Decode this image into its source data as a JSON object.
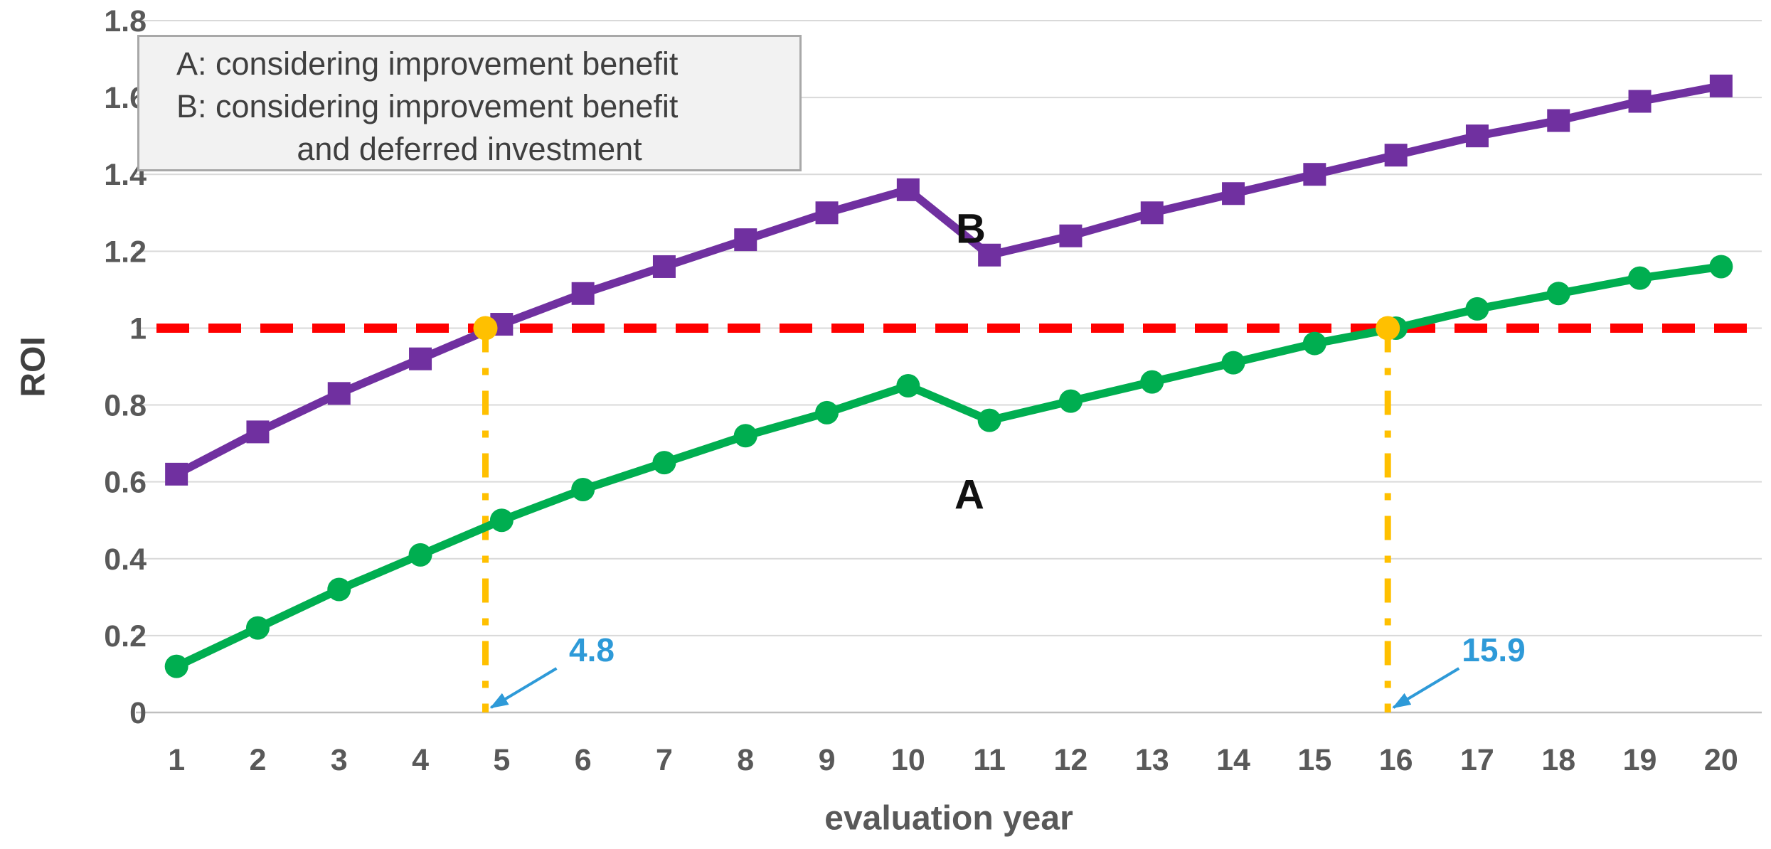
{
  "page": {
    "background": "#FFFFFF"
  },
  "chart_data": {
    "type": "line",
    "title": "",
    "xlabel": "evaluation year",
    "ylabel": "ROI",
    "xlim": [
      0.5,
      20.5
    ],
    "ylim": [
      0,
      1.8
    ],
    "grid": "horizontal",
    "legend_position": "top-left-box",
    "x": [
      1,
      2,
      3,
      4,
      5,
      6,
      7,
      8,
      9,
      10,
      11,
      12,
      13,
      14,
      15,
      16,
      17,
      18,
      19,
      20
    ],
    "x_tick_labels": [
      "1",
      "2",
      "3",
      "4",
      "5",
      "6",
      "7",
      "8",
      "9",
      "10",
      "11",
      "12",
      "13",
      "14",
      "15",
      "16",
      "17",
      "18",
      "19",
      "20"
    ],
    "y_ticks": [
      0,
      0.2,
      0.4,
      0.6,
      0.8,
      1,
      1.2,
      1.4,
      1.6,
      1.8
    ],
    "y_tick_labels": [
      "0",
      "0.2",
      "0.4",
      "0.6",
      "0.8",
      "1",
      "1.2",
      "1.4",
      "1.6",
      "1.8"
    ],
    "series": [
      {
        "name": "A",
        "legend": "A: considering improvement benefit",
        "marker": "circle",
        "color": "#00AE50",
        "values": [
          0.12,
          0.22,
          0.32,
          0.41,
          0.5,
          0.58,
          0.65,
          0.72,
          0.78,
          0.85,
          0.76,
          0.81,
          0.86,
          0.91,
          0.96,
          1.0,
          1.05,
          1.09,
          1.13,
          1.16
        ]
      },
      {
        "name": "B",
        "legend": "B: considering improvement benefit and deferred investment",
        "marker": "square",
        "color": "#7030A0",
        "values": [
          0.62,
          0.73,
          0.83,
          0.92,
          1.01,
          1.09,
          1.16,
          1.23,
          1.3,
          1.36,
          1.19,
          1.24,
          1.3,
          1.35,
          1.4,
          1.45,
          1.5,
          1.54,
          1.59,
          1.63
        ]
      }
    ],
    "curve_labels": [
      {
        "text": "B",
        "x": 10.8,
        "y": 1.26
      },
      {
        "text": "A",
        "x": 10.75,
        "y": 0.57
      }
    ],
    "reference_line": {
      "y": 1.0,
      "color": "#FF0000",
      "style": "dashed"
    },
    "breakeven_points": [
      {
        "x": 4.8,
        "y": 1.0,
        "label": "4.8"
      },
      {
        "x": 15.9,
        "y": 1.0,
        "label": "15.9"
      }
    ],
    "breakeven_marker_color": "#FFC000",
    "breakeven_line_color": "#FFC000",
    "annotation_color": "#2E9AD8",
    "gridline_color": "#D9D9D9",
    "axis_line_color": "#BFBFBF",
    "tick_label_color": "#595959"
  },
  "legend_box": {
    "lines": [
      "A: considering improvement benefit",
      "B: considering improvement benefit",
      "and deferred investment"
    ]
  }
}
